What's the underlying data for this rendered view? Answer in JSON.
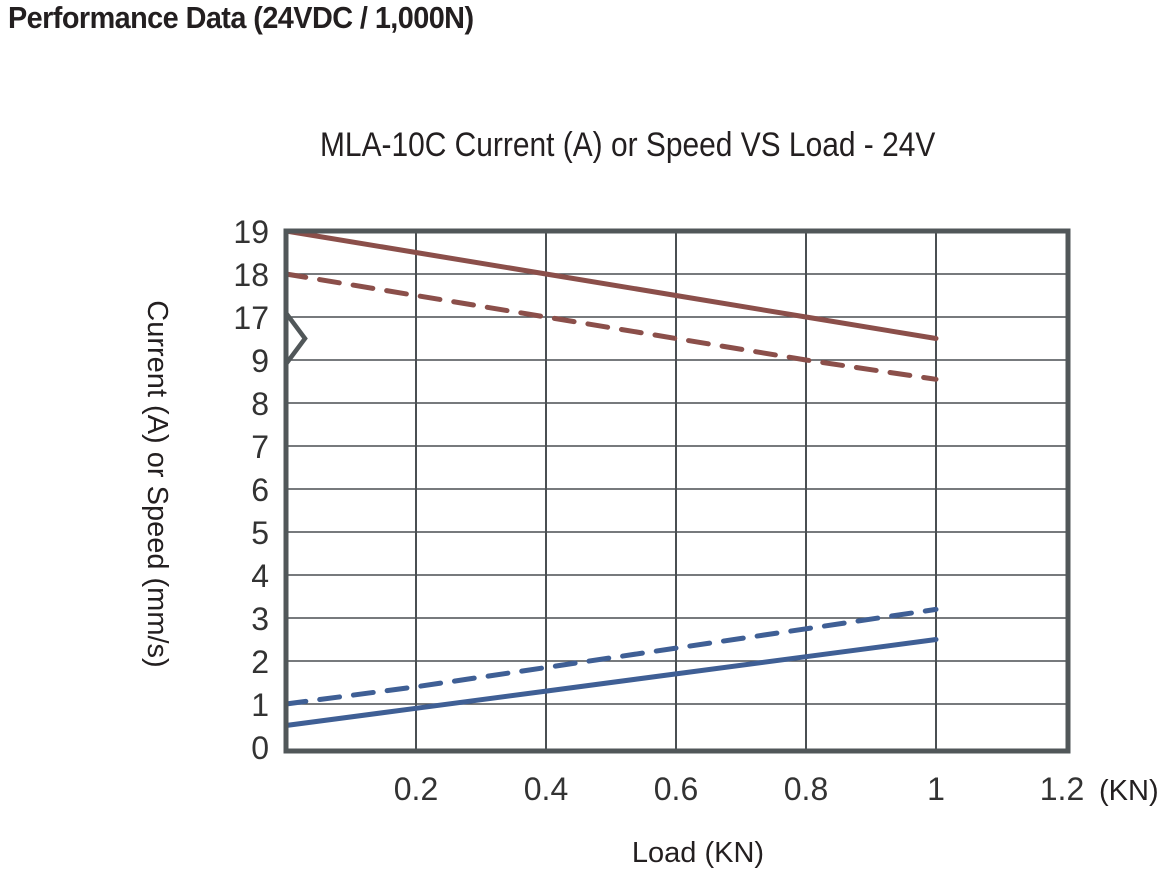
{
  "page": {
    "heading": "Performance Data (24VDC / 1,000N)"
  },
  "chart_data": {
    "type": "line",
    "title": "MLA-10C Current (A) or Speed VS Load - 24V",
    "xlabel": "Load (KN)",
    "ylabel": "Current (A) or Speed (mm/s)",
    "x_unit_label": "(KN)",
    "xlim": [
      0,
      1.2
    ],
    "x_ticks": [
      "0.2",
      "0.4",
      "0.6",
      "0.8",
      "1",
      "1.2"
    ],
    "x_tick_values": [
      0.2,
      0.4,
      0.6,
      0.8,
      1.0,
      1.2
    ],
    "y_ticks": [
      "0",
      "1",
      "2",
      "3",
      "4",
      "5",
      "6",
      "7",
      "8",
      "9",
      "17",
      "18",
      "19"
    ],
    "y_tick_values": [
      0,
      1,
      2,
      3,
      4,
      5,
      6,
      7,
      8,
      9,
      17,
      18,
      19
    ],
    "y_axis_break": "between 9 and 17",
    "grid": true,
    "legend": "none",
    "colors": {
      "speed": "#8b4f4a",
      "current": "#3f5f95",
      "frame": "#515759",
      "grid": "#4a4f52"
    },
    "series": [
      {
        "name": "speed-solid",
        "style": "solid",
        "color_key": "speed",
        "x": [
          0,
          0.2,
          0.4,
          0.6,
          0.8,
          1.0
        ],
        "y": [
          19,
          18.5,
          18,
          17.5,
          17,
          16.5
        ]
      },
      {
        "name": "speed-dashed",
        "style": "dashed",
        "color_key": "speed",
        "x": [
          0,
          0.2,
          0.4,
          0.6,
          0.8,
          1.0
        ],
        "y": [
          18,
          17.5,
          17,
          16.5,
          9,
          8.55
        ]
      },
      {
        "name": "current-dashed",
        "style": "dashed",
        "color_key": "current",
        "x": [
          0,
          0.2,
          0.4,
          0.6,
          0.8,
          1.0
        ],
        "y": [
          1.0,
          1.4,
          1.85,
          2.3,
          2.75,
          3.2
        ]
      },
      {
        "name": "current-solid",
        "style": "solid",
        "color_key": "current",
        "x": [
          0,
          0.2,
          0.4,
          0.6,
          0.8,
          1.0
        ],
        "y": [
          0.5,
          0.9,
          1.3,
          1.7,
          2.1,
          2.5
        ]
      }
    ]
  }
}
